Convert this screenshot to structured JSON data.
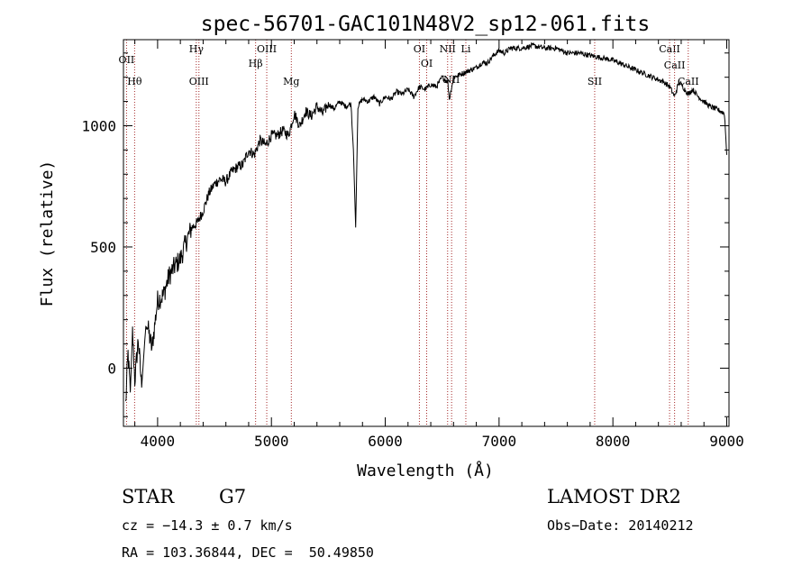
{
  "chart_data": {
    "type": "line",
    "title": "spec-56701-GAC101N48V2_sp12-061.fits",
    "xlabel": "Wavelength (Å)",
    "ylabel": "Flux (relative)",
    "xlim": [
      3700,
      9020
    ],
    "ylim": [
      -240,
      1355
    ],
    "x_ticks": [
      4000,
      5000,
      6000,
      7000,
      8000,
      9000
    ],
    "y_ticks": [
      0,
      500,
      1000
    ],
    "series": [
      {
        "x": [
          3720,
          3740,
          3760,
          3780,
          3800,
          3830,
          3860,
          3900,
          3950,
          4000,
          4050,
          4100,
          4150,
          4200,
          4250,
          4300,
          4350,
          4400,
          4450,
          4500,
          4550,
          4600,
          4650,
          4700,
          4750,
          4800,
          4850,
          4900,
          4950,
          5000,
          5050,
          5100,
          5150,
          5200,
          5250,
          5300,
          5350,
          5400,
          5450,
          5500,
          5550,
          5600,
          5650,
          5700,
          5720,
          5740,
          5760,
          5800,
          5850,
          5900,
          5950,
          6000,
          6050,
          6100,
          6150,
          6200,
          6250,
          6300,
          6350,
          6400,
          6450,
          6500,
          6550,
          6563,
          6600,
          6650,
          6700,
          6750,
          6800,
          6850,
          6900,
          6950,
          7000,
          7050,
          7100,
          7150,
          7200,
          7300,
          7400,
          7500,
          7600,
          7700,
          7800,
          7900,
          8000,
          8100,
          8200,
          8300,
          8400,
          8450,
          8500,
          8542,
          8580,
          8600,
          8662,
          8700,
          8750,
          8800,
          8850,
          8900,
          8950,
          8980,
          9000
        ],
        "y": [
          -150,
          60,
          -100,
          150,
          -50,
          120,
          -80,
          200,
          80,
          280,
          300,
          380,
          420,
          450,
          520,
          580,
          600,
          650,
          720,
          760,
          780,
          770,
          810,
          830,
          840,
          900,
          880,
          940,
          920,
          960,
          960,
          980,
          960,
          1050,
          1000,
          1060,
          1040,
          1080,
          1050,
          1090,
          1070,
          1100,
          1080,
          1090,
          900,
          580,
          1080,
          1110,
          1100,
          1120,
          1090,
          1120,
          1110,
          1140,
          1130,
          1150,
          1120,
          1160,
          1150,
          1170,
          1160,
          1200,
          1180,
          1110,
          1200,
          1210,
          1220,
          1230,
          1240,
          1260,
          1260,
          1290,
          1310,
          1300,
          1320,
          1320,
          1320,
          1330,
          1320,
          1320,
          1300,
          1300,
          1290,
          1280,
          1270,
          1250,
          1230,
          1210,
          1190,
          1180,
          1160,
          1120,
          1180,
          1170,
          1130,
          1150,
          1120,
          1100,
          1080,
          1070,
          1060,
          1050,
          880
        ]
      }
    ],
    "lines": [
      {
        "label": "OII",
        "x": 3727
      },
      {
        "label": "Hθ",
        "x": 3798
      },
      {
        "label": "Hγ",
        "x": 4340
      },
      {
        "label": "OIII",
        "x": 4363
      },
      {
        "label": "Hβ",
        "x": 4861
      },
      {
        "label": "OIII",
        "x": 4959
      },
      {
        "label": "Mg",
        "x": 5175
      },
      {
        "label": "OI",
        "x": 6300
      },
      {
        "label": "OI",
        "x": 6364
      },
      {
        "label": "NII",
        "x": 6548
      },
      {
        "label": "NII",
        "x": 6583
      },
      {
        "label": "Li",
        "x": 6708
      },
      {
        "label": "SII",
        "x": 7840
      },
      {
        "label": "CaII",
        "x": 8498
      },
      {
        "label": "CaII",
        "x": 8542
      },
      {
        "label": "CaII",
        "x": 8662
      }
    ],
    "grid": false,
    "legend": "none"
  },
  "info": {
    "object_class": "STAR",
    "subclass": "G7",
    "survey": "LAMOST DR2",
    "cz": "cz = −14.3 ± 0.7 km/s",
    "obs_date": "Obs−Date: 20140212",
    "coords": "RA = 103.36844, DEC =  50.49850"
  },
  "colors": {
    "spectrum": "#000000",
    "line_markers": "#a52a2a"
  }
}
